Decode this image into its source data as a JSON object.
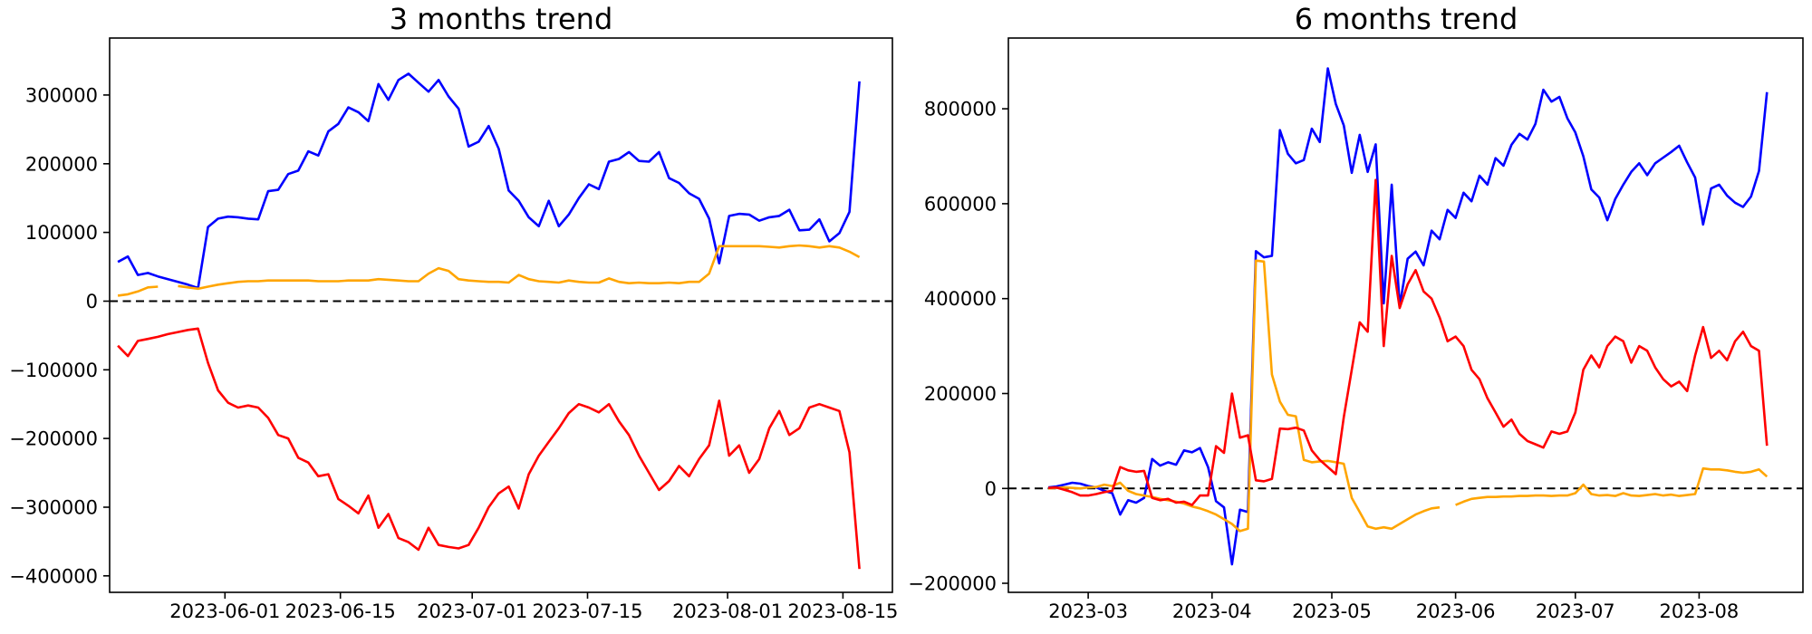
{
  "figure": {
    "background": "#ffffff",
    "axis_color": "#000000",
    "text_color": "#000000"
  },
  "chart_data": [
    {
      "type": "line",
      "title": "3 months trend",
      "xlabel": "",
      "ylabel": "",
      "grid": false,
      "legend": "none",
      "zero_line_dashed": true,
      "x_start": "2023-05-19",
      "x_end": "2023-08-17",
      "xlim": [
        "2023-05-18",
        "2023-08-21"
      ],
      "ylim": [
        -424000,
        383000
      ],
      "yticks": [
        300000,
        200000,
        100000,
        0,
        -100000,
        -200000,
        -300000,
        -400000
      ],
      "ytick_labels": [
        "300000",
        "200000",
        "100000",
        "0",
        "−100000",
        "−200000",
        "−300000",
        "−400000"
      ],
      "xticks": [
        {
          "date": "2023-06-01",
          "label": "2023-06-01"
        },
        {
          "date": "2023-06-15",
          "label": "2023-06-15"
        },
        {
          "date": "2023-07-01",
          "label": "2023-07-01"
        },
        {
          "date": "2023-07-15",
          "label": "2023-07-15"
        },
        {
          "date": "2023-08-01",
          "label": "2023-08-01"
        },
        {
          "date": "2023-08-15",
          "label": "2023-08-15"
        }
      ],
      "series": [
        {
          "name": "blue-series",
          "color": "#0000ff",
          "values": [
            57000,
            65000,
            38000,
            41000,
            36000,
            32000,
            28000,
            24000,
            19000,
            108000,
            120000,
            123000,
            122000,
            120000,
            119000,
            160000,
            162000,
            185000,
            190000,
            218000,
            212000,
            247000,
            258000,
            282000,
            275000,
            262000,
            316000,
            293000,
            322000,
            331000,
            318000,
            305000,
            322000,
            298000,
            280000,
            225000,
            232000,
            255000,
            222000,
            161000,
            146000,
            122000,
            109000,
            146000,
            109000,
            126000,
            150000,
            170000,
            163000,
            203000,
            207000,
            217000,
            204000,
            203000,
            217000,
            179000,
            172000,
            157000,
            149000,
            120000,
            55000,
            124000,
            127000,
            126000,
            117000,
            122000,
            124000,
            133000,
            103000,
            104000,
            119000,
            87000,
            99000,
            130000,
            320000
          ]
        },
        {
          "name": "orange-series",
          "color": "#ffa500",
          "values": [
            8000,
            10000,
            14000,
            20000,
            21000,
            null,
            22000,
            20000,
            18000,
            21000,
            24000,
            26000,
            28000,
            29000,
            29000,
            30000,
            30000,
            30000,
            30000,
            30000,
            29000,
            29000,
            29000,
            30000,
            30000,
            30000,
            32000,
            31000,
            30000,
            29000,
            29000,
            40000,
            48000,
            44000,
            32000,
            30000,
            29000,
            28000,
            28000,
            27000,
            38000,
            32000,
            29000,
            28000,
            27000,
            30000,
            28000,
            27000,
            27000,
            33000,
            28000,
            26000,
            27000,
            26000,
            26000,
            27000,
            26000,
            28000,
            28000,
            40000,
            80000,
            80000,
            80000,
            80000,
            80000,
            79000,
            78000,
            80000,
            81000,
            80000,
            78000,
            80000,
            78000,
            72000,
            64000
          ]
        },
        {
          "name": "red-series",
          "color": "#ff0000",
          "values": [
            -65000,
            -80000,
            -58000,
            -55000,
            -52000,
            -48000,
            -45000,
            -42000,
            -40000,
            -90000,
            -130000,
            -148000,
            -155000,
            -152000,
            -155000,
            -170000,
            -195000,
            -200000,
            -228000,
            -235000,
            -255000,
            -252000,
            -288000,
            -298000,
            -309000,
            -283000,
            -330000,
            -310000,
            -345000,
            -351000,
            -362000,
            -330000,
            -355000,
            -358000,
            -360000,
            -355000,
            -330000,
            -300000,
            -280000,
            -270000,
            -302000,
            -252000,
            -225000,
            -205000,
            -185000,
            -163000,
            -150000,
            -155000,
            -162000,
            -150000,
            -175000,
            -195000,
            -225000,
            -250000,
            -275000,
            -262000,
            -240000,
            -255000,
            -230000,
            -210000,
            -145000,
            -225000,
            -210000,
            -250000,
            -230000,
            -185000,
            -160000,
            -195000,
            -185000,
            -155000,
            -150000,
            -155000,
            -160000,
            -220000,
            -390000
          ]
        }
      ]
    },
    {
      "type": "line",
      "title": "6 months trend",
      "xlabel": "",
      "ylabel": "",
      "grid": false,
      "legend": "none",
      "zero_line_dashed": true,
      "x_start": "2023-02-19",
      "x_end": "2023-08-18",
      "xlim": [
        "2023-02-09",
        "2023-08-27"
      ],
      "ylim": [
        -219000,
        949000
      ],
      "yticks": [
        800000,
        600000,
        400000,
        200000,
        0,
        -200000
      ],
      "ytick_labels": [
        "800000",
        "600000",
        "400000",
        "200000",
        "0",
        "−200000"
      ],
      "xticks": [
        {
          "date": "2023-03-01",
          "label": "2023-03"
        },
        {
          "date": "2023-04-01",
          "label": "2023-04"
        },
        {
          "date": "2023-05-01",
          "label": "2023-05"
        },
        {
          "date": "2023-06-01",
          "label": "2023-06"
        },
        {
          "date": "2023-07-01",
          "label": "2023-07"
        },
        {
          "date": "2023-08-01",
          "label": "2023-08"
        }
      ],
      "series": [
        {
          "name": "blue-series",
          "color": "#0000ff",
          "values": [
            2000,
            4000,
            8000,
            12000,
            10000,
            5000,
            2000,
            -5000,
            -10000,
            -55000,
            -25000,
            -30000,
            -20000,
            62000,
            48000,
            55000,
            50000,
            80000,
            76000,
            85000,
            45000,
            -27000,
            -40000,
            -160000,
            -45000,
            -50000,
            500000,
            487000,
            490000,
            755000,
            705000,
            685000,
            692000,
            758000,
            730000,
            885000,
            810000,
            765000,
            665000,
            745000,
            667000,
            725000,
            390000,
            640000,
            385000,
            484000,
            499000,
            470000,
            543000,
            525000,
            587000,
            570000,
            623000,
            605000,
            659000,
            640000,
            696000,
            680000,
            724000,
            747000,
            735000,
            768000,
            840000,
            815000,
            825000,
            780000,
            750000,
            700000,
            630000,
            613000,
            565000,
            610000,
            640000,
            667000,
            685000,
            660000,
            685000,
            697000,
            709000,
            722000,
            687000,
            655000,
            556000,
            632000,
            640000,
            617000,
            602000,
            593000,
            615000,
            669000,
            835000
          ]
        },
        {
          "name": "orange-series",
          "color": "#ffa500",
          "values": [
            0,
            1000,
            2000,
            1000,
            0,
            2000,
            3000,
            8000,
            5000,
            12000,
            -5000,
            -12000,
            -15000,
            -18000,
            -22000,
            -25000,
            -28000,
            -32000,
            -38000,
            -42000,
            -48000,
            -55000,
            -65000,
            -75000,
            -90000,
            -85000,
            480000,
            478000,
            240000,
            183000,
            155000,
            152000,
            60000,
            55000,
            57000,
            58000,
            55000,
            52000,
            -20000,
            -50000,
            -80000,
            -85000,
            -82000,
            -85000,
            -75000,
            -65000,
            -55000,
            -48000,
            -42000,
            -40000,
            null,
            -35000,
            -28000,
            -22000,
            -20000,
            -18000,
            -18000,
            -17000,
            -17000,
            -16000,
            -16000,
            -15000,
            -15000,
            -16000,
            -15000,
            -15000,
            -10000,
            8000,
            -12000,
            -15000,
            -14000,
            -16000,
            -10000,
            -15000,
            -16000,
            -14000,
            -12000,
            -15000,
            -13000,
            -16000,
            -14000,
            -12000,
            42000,
            40000,
            40000,
            38000,
            35000,
            33000,
            35000,
            40000,
            25000
          ]
        },
        {
          "name": "red-series",
          "color": "#ff0000",
          "values": [
            1000,
            2000,
            -3000,
            -8000,
            -15000,
            -15000,
            -12000,
            -8000,
            -5000,
            45000,
            38000,
            35000,
            37000,
            -20000,
            -25000,
            -22000,
            -30000,
            -28000,
            -35000,
            -15000,
            -15000,
            89000,
            75000,
            200000,
            107000,
            112000,
            17000,
            15000,
            20000,
            126000,
            125000,
            128000,
            122000,
            80000,
            60000,
            45000,
            30000,
            150000,
            250000,
            350000,
            330000,
            650000,
            300000,
            490000,
            380000,
            430000,
            460000,
            415000,
            400000,
            360000,
            310000,
            320000,
            300000,
            250000,
            230000,
            190000,
            160000,
            130000,
            145000,
            115000,
            100000,
            93000,
            86000,
            120000,
            115000,
            120000,
            160000,
            250000,
            280000,
            255000,
            300000,
            320000,
            310000,
            265000,
            300000,
            290000,
            255000,
            230000,
            215000,
            225000,
            205000,
            280000,
            340000,
            275000,
            290000,
            270000,
            310000,
            330000,
            300000,
            290000,
            90000
          ]
        }
      ]
    }
  ]
}
